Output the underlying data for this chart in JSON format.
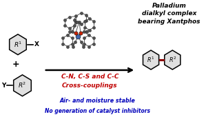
{
  "title_text": "Palladium\ndialkyl complex\nbearing Xantphos",
  "red_text_line1": "C-N, C-S and C-C",
  "red_text_line2": "Cross-couplings",
  "blue_text_line1": "Air- and moisture stable",
  "blue_text_line2": "No generation of catalyst inhibitors",
  "bg_color": "#ffffff",
  "title_color": "#000000",
  "red_color": "#c00000",
  "blue_color": "#0000bb",
  "hex_fill": "#e0e0e0",
  "hex_edge": "#000000",
  "arrow_color": "#000000",
  "bond_color_dark": "#8b0000",
  "atom_color": "#505050",
  "atom_edge": "#222222",
  "pd_color": "#4466aa",
  "o_color": "#cc2200",
  "xlim": [
    0,
    10
  ],
  "ylim": [
    0,
    6.3
  ]
}
